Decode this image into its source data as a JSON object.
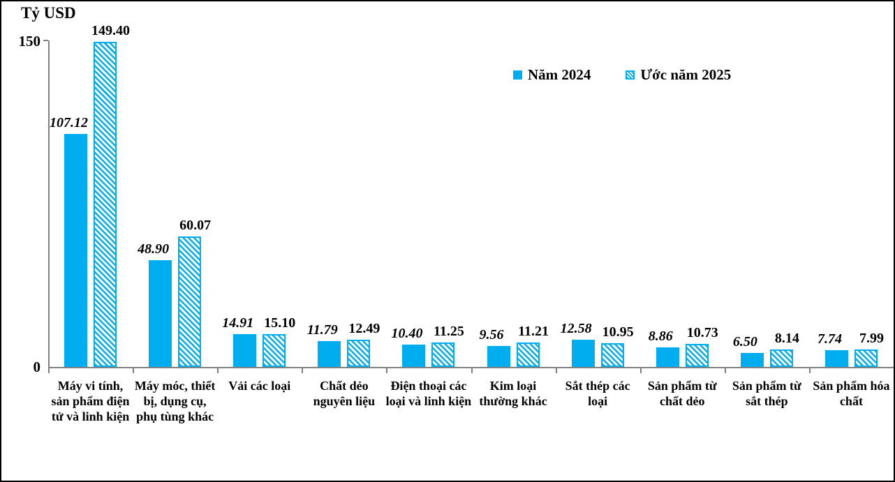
{
  "colors": {
    "bar_blue": "#00AEEF",
    "axis_gray": "#808080",
    "text": "#000000",
    "background": "#FFFFFF"
  },
  "axis": {
    "title": "Tỷ USD",
    "y_max_label": "150",
    "y_min_label": "0"
  },
  "chart_data": {
    "type": "bar",
    "title": "Tỷ USD",
    "xlabel": "",
    "ylabel": "Tỷ USD",
    "ylim": [
      0,
      150
    ],
    "y_ticks": [
      "0",
      "150"
    ],
    "grid": false,
    "legend_position": "top-right",
    "value_labels": "outside-end, 2 decimals; 2024 series italic",
    "categories": [
      "Máy vi tính, sản phẩm điện tử và linh kiện",
      "Máy móc, thiết bị, dụng cụ, phụ tùng khác",
      "Vải các loại",
      "Chất dẻo nguyên liệu",
      "Điện thoại các loại và linh kiện",
      "Kim loại thường khác",
      "Sắt thép các loại",
      "Sản phẩm từ chất dẻo",
      "Sản phẩm từ sắt thép",
      "Sản phẩm hóa chất"
    ],
    "series": [
      {
        "name": "Năm 2024",
        "style": "solid",
        "values": [
          107.12,
          48.9,
          14.91,
          11.79,
          10.4,
          9.56,
          12.58,
          8.86,
          6.5,
          7.74
        ]
      },
      {
        "name": "Ước năm 2025",
        "style": "hatched",
        "values": [
          149.4,
          60.07,
          15.1,
          12.49,
          11.25,
          11.21,
          10.95,
          10.73,
          8.14,
          7.99
        ]
      }
    ]
  }
}
